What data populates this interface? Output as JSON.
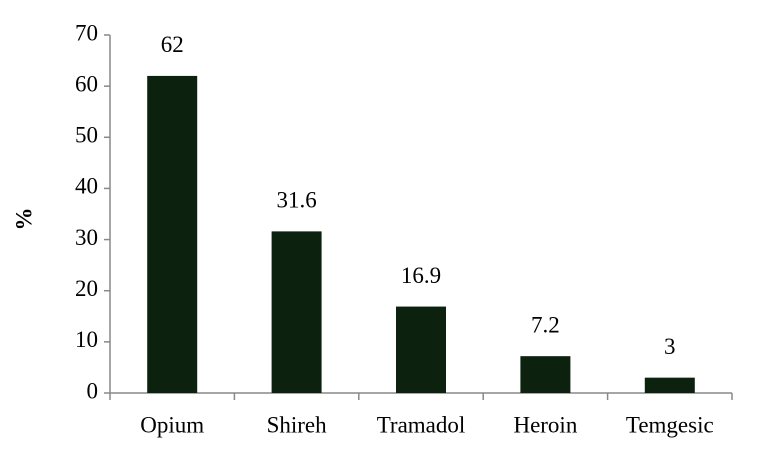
{
  "chart_data": {
    "type": "bar",
    "ylabel": "%",
    "categories": [
      "Opium",
      "Shireh",
      "Tramadol",
      "Heroin",
      "Temgesic"
    ],
    "values": [
      62,
      31.6,
      16.9,
      7.2,
      3
    ],
    "color": "#0c220f",
    "ylim": [
      0,
      70
    ],
    "yticks": [
      0,
      10,
      20,
      30,
      40,
      50,
      60,
      70
    ],
    "grid": false
  }
}
